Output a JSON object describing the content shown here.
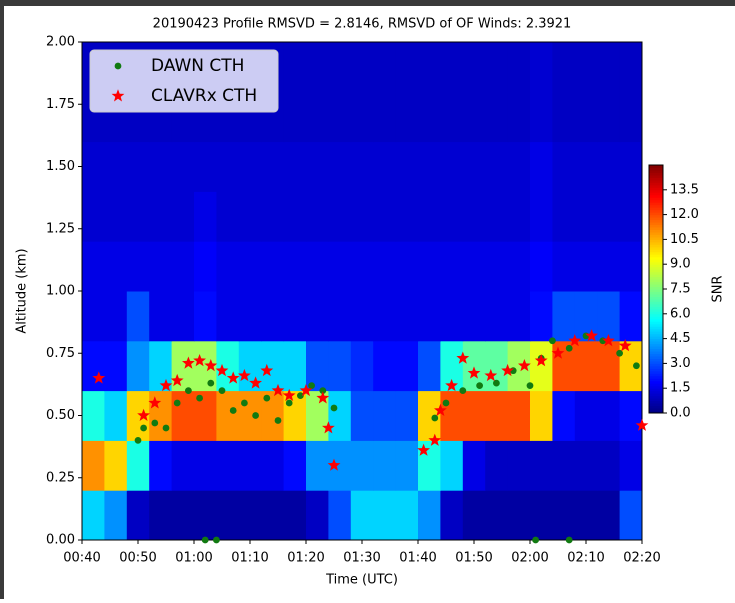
{
  "chart_data": {
    "type": "heatmap",
    "title": "20190423 Profile RMSVD =   2.8146, RMSVD of OF Winds:   2.3921",
    "xlabel": "Time (UTC)",
    "ylabel": "Altitude (km)",
    "xlim": [
      40,
      140
    ],
    "ylim": [
      0,
      2
    ],
    "xticks": [
      {
        "value": 40,
        "label": "00:40"
      },
      {
        "value": 50,
        "label": "00:50"
      },
      {
        "value": 60,
        "label": "01:00"
      },
      {
        "value": 70,
        "label": "01:10"
      },
      {
        "value": 80,
        "label": "01:20"
      },
      {
        "value": 90,
        "label": "01:30"
      },
      {
        "value": 100,
        "label": "01:40"
      },
      {
        "value": 110,
        "label": "01:50"
      },
      {
        "value": 120,
        "label": "02:00"
      },
      {
        "value": 130,
        "label": "02:10"
      },
      {
        "value": 140,
        "label": "02:20"
      }
    ],
    "yticks": [
      {
        "value": 0,
        "label": "0.00"
      },
      {
        "value": 0.25,
        "label": "0.25"
      },
      {
        "value": 0.5,
        "label": "0.50"
      },
      {
        "value": 0.75,
        "label": "0.75"
      },
      {
        "value": 1,
        "label": "1.00"
      },
      {
        "value": 1.25,
        "label": "1.25"
      },
      {
        "value": 1.5,
        "label": "1.50"
      },
      {
        "value": 1.75,
        "label": "1.75"
      },
      {
        "value": 2,
        "label": "2.00"
      }
    ],
    "colorbar": {
      "label": "SNR",
      "colormap": "jet",
      "lim": [
        0,
        15
      ],
      "ticks": [
        {
          "value": 0,
          "label": "0.0"
        },
        1.5,
        {
          "value": 3,
          "label": "3.0"
        },
        4.5,
        {
          "value": 6,
          "label": "6.0"
        },
        7.5,
        {
          "value": 9,
          "label": "9.0"
        },
        10.5,
        {
          "value": 12,
          "label": "12.0"
        },
        13.5
      ]
    },
    "heatmap": {
      "x": [
        40,
        44,
        48,
        52,
        56,
        60,
        64,
        68,
        72,
        76,
        80,
        84,
        88,
        92,
        96,
        100,
        104,
        108,
        112,
        116,
        120,
        124,
        128,
        132,
        136,
        140
      ],
      "y": [
        0,
        0.2,
        0.4,
        0.6,
        0.8,
        1.0,
        1.2,
        1.4,
        1.6,
        1.8,
        2.0
      ],
      "values": [
        [
          5,
          4,
          1,
          0.5,
          0.5,
          0.5,
          0.5,
          0.5,
          0.5,
          0.5,
          1,
          3,
          5,
          5,
          5,
          4,
          1,
          0.5,
          0.5,
          0.5,
          0.5,
          0.5,
          0.5,
          0.5,
          3
        ],
        [
          11,
          10,
          6,
          2,
          1.5,
          1.5,
          1.5,
          1.5,
          1.5,
          2,
          4,
          4,
          4,
          4,
          4,
          6,
          5,
          1.5,
          1,
          1,
          1,
          1,
          1,
          1,
          1.5
        ],
        [
          6,
          5,
          10,
          11,
          12,
          12,
          11,
          11,
          11,
          10,
          8,
          5,
          3,
          3,
          3,
          10,
          12,
          12,
          12,
          12,
          10,
          2,
          1.5,
          1.5,
          2
        ],
        [
          2,
          2,
          4,
          5,
          8,
          8,
          6,
          5,
          5,
          5,
          3,
          3,
          2.5,
          2,
          2,
          3,
          6,
          7,
          7,
          8,
          9,
          12,
          12,
          12,
          10
        ],
        [
          1.5,
          1.5,
          3,
          1.5,
          1.5,
          2,
          1.5,
          1.5,
          1.5,
          1.5,
          1.5,
          1.5,
          1.5,
          1.5,
          1.5,
          1.5,
          1.5,
          1.5,
          1.5,
          1.5,
          2,
          3,
          3,
          3,
          2
        ],
        [
          1.5,
          1.5,
          1.5,
          1.5,
          1.5,
          1.8,
          1.5,
          1.5,
          1.5,
          1.5,
          1.5,
          1.5,
          1.5,
          1.5,
          1.5,
          1.5,
          1.5,
          1.5,
          1.5,
          1.5,
          1.8,
          1.5,
          1.5,
          1.5,
          1.5
        ],
        [
          1.2,
          1.2,
          1.2,
          1.2,
          1.2,
          1.5,
          1.2,
          1.2,
          1.2,
          1.2,
          1.2,
          1.2,
          1.2,
          1.2,
          1.2,
          1.2,
          1.2,
          1.2,
          1.2,
          1.2,
          1.5,
          1.2,
          1.2,
          1.2,
          1.2
        ],
        [
          1.2,
          1.2,
          1.2,
          1.2,
          1.2,
          1.2,
          1.2,
          1.2,
          1.2,
          1.2,
          1.2,
          1.2,
          1.2,
          1.2,
          1.2,
          1.2,
          1.2,
          1.2,
          1.2,
          1.2,
          1.5,
          1.2,
          1.2,
          1.2,
          1.2
        ],
        [
          1,
          1,
          1,
          1,
          1,
          1,
          1,
          1,
          1,
          1,
          1,
          1,
          1,
          1,
          1,
          1,
          1,
          1,
          1,
          1,
          1.2,
          1,
          1,
          1,
          1
        ],
        [
          1,
          1,
          1,
          1,
          1,
          1,
          1,
          1,
          1,
          1,
          1,
          1,
          1,
          1,
          1,
          1,
          1,
          1,
          1,
          1,
          1.2,
          1,
          1,
          1,
          1
        ]
      ]
    },
    "legend": "upper left",
    "series": [
      {
        "name": "DAWN CTH",
        "color": "#117a11",
        "marker": "circle",
        "x": [
          50,
          51,
          53,
          55,
          57,
          59,
          61,
          63,
          65,
          67,
          69,
          71,
          73,
          75,
          77,
          79,
          81,
          83,
          85,
          103,
          105,
          108,
          111,
          114,
          117,
          120,
          122,
          124,
          127,
          130,
          133,
          136,
          139,
          62,
          64,
          121,
          127
        ],
        "values": [
          0.4,
          0.45,
          0.47,
          0.45,
          0.55,
          0.6,
          0.57,
          0.63,
          0.6,
          0.52,
          0.55,
          0.5,
          0.57,
          0.48,
          0.55,
          0.58,
          0.62,
          0.6,
          0.53,
          0.49,
          0.55,
          0.6,
          0.62,
          0.63,
          0.68,
          0.62,
          0.73,
          0.8,
          0.77,
          0.82,
          0.8,
          0.75,
          0.7,
          0,
          0,
          0,
          0
        ]
      },
      {
        "name": "CLAVRx CTH",
        "color": "#ff0000",
        "marker": "star",
        "x": [
          43,
          51,
          53,
          55,
          57,
          59,
          61,
          63,
          65,
          67,
          69,
          71,
          73,
          75,
          77,
          80,
          83,
          84,
          85,
          101,
          103,
          104,
          106,
          108,
          110,
          113,
          116,
          119,
          122,
          125,
          128,
          131,
          134,
          137,
          140
        ],
        "values": [
          0.65,
          0.5,
          0.55,
          0.62,
          0.64,
          0.71,
          0.72,
          0.7,
          0.68,
          0.65,
          0.66,
          0.63,
          0.68,
          0.6,
          0.58,
          0.6,
          0.57,
          0.45,
          0.3,
          0.36,
          0.4,
          0.52,
          0.62,
          0.73,
          0.67,
          0.66,
          0.68,
          0.7,
          0.72,
          0.75,
          0.8,
          0.82,
          0.8,
          0.78,
          0.46
        ]
      }
    ]
  }
}
